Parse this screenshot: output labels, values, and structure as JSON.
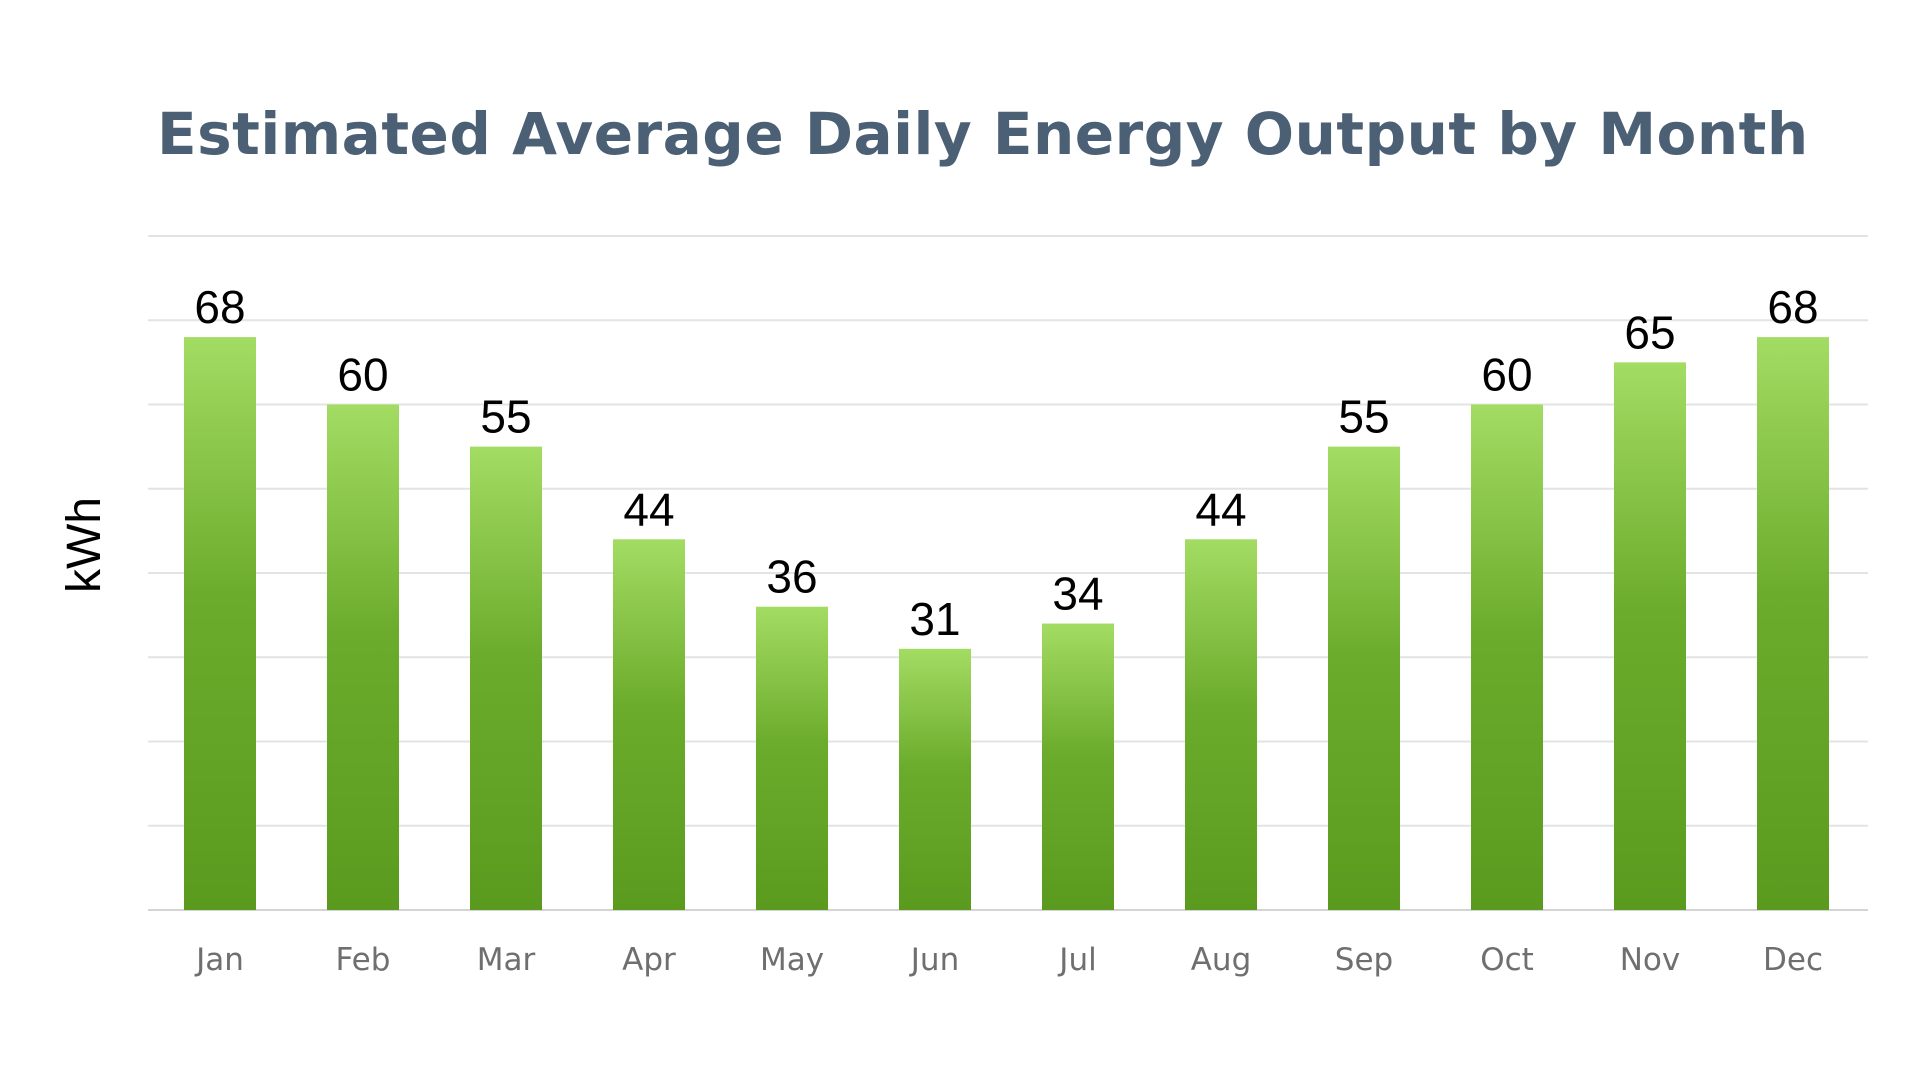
{
  "chart_data": {
    "type": "bar",
    "title": "Estimated Average Daily Energy Output by Month",
    "xlabel": "",
    "ylabel": "kWh",
    "categories": [
      "Jan",
      "Feb",
      "Mar",
      "Apr",
      "May",
      "Jun",
      "Jul",
      "Aug",
      "Sep",
      "Oct",
      "Nov",
      "Dec"
    ],
    "values": [
      68,
      60,
      55,
      44,
      36,
      31,
      34,
      44,
      55,
      60,
      65,
      68
    ],
    "ylim": [
      0,
      80
    ],
    "grid": true,
    "legend": "none",
    "colors": {
      "bar_top": "#a3dc63",
      "bar_mid": "#6cac2c",
      "bar_bottom": "#5a9a1e",
      "title": "#4b5f75"
    }
  }
}
